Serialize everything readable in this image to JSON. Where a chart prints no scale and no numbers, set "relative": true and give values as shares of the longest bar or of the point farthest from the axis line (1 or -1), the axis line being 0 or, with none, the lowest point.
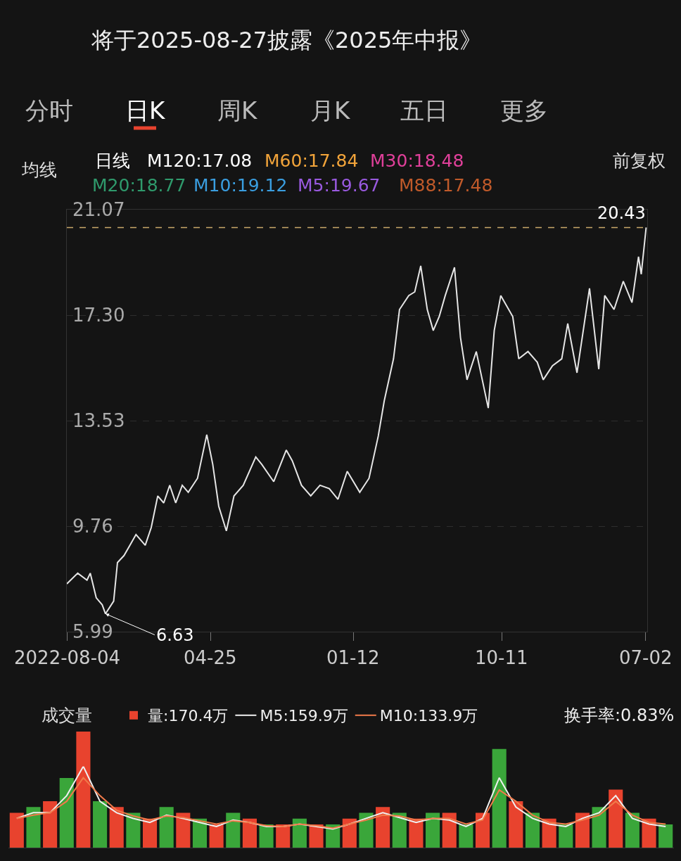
{
  "chart_data": [
    {
      "type": "line",
      "title": "将于2025-08-27披露《2025年中报》",
      "annotations": [
        "分时",
        "日K",
        "周K",
        "月K",
        "五日",
        "更多",
        "均线",
        "日线",
        "M120:17.08",
        "M60:17.84",
        "M30:18.48",
        "前复权",
        "M20:18.77",
        "M10:19.12",
        "M5:19.67",
        "M88:17.48",
        {
          "text": "6.63",
          "x": "2022-10-14",
          "y": 6.63
        }
      ],
      "x": [
        "2022-08-04",
        "2022-08-24",
        "2022-09-10",
        "2022-09-16",
        "2022-09-27",
        "2022-10-08",
        "2022-10-14",
        "2022-10-29",
        "2022-11-05",
        "2022-11-17",
        "2022-11-28",
        "2022-12-09",
        "2022-12-26",
        "2023-01-06",
        "2023-01-18",
        "2023-01-29",
        "2023-02-09",
        "2023-02-20",
        "2023-03-04",
        "2023-03-15",
        "2023-04-01",
        "2023-04-18",
        "2023-04-29",
        "2023-05-10",
        "2023-05-24",
        "2023-06-07",
        "2023-06-24",
        "2023-07-17",
        "2023-07-28",
        "2023-08-19",
        "2023-09-11",
        "2023-09-22",
        "2023-10-09",
        "2023-10-26",
        "2023-11-12",
        "2023-11-29",
        "2023-12-15",
        "2024-01-01",
        "2024-01-24",
        "2024-02-10",
        "2024-02-27",
        "2024-03-09",
        "2024-03-26",
        "2024-04-06",
        "2024-04-23",
        "2024-05-04",
        "2024-05-15",
        "2024-05-27",
        "2024-06-07",
        "2024-06-18",
        "2024-06-29",
        "2024-07-16",
        "2024-07-27",
        "2024-08-08",
        "2024-08-25",
        "2024-09-05",
        "2024-09-16",
        "2024-09-27",
        "2024-10-09",
        "2024-10-31",
        "2024-11-11",
        "2024-11-28",
        "2024-12-15",
        "2024-12-26",
        "2025-01-12",
        "2025-01-29",
        "2025-02-09",
        "2025-02-26",
        "2025-03-21",
        "2025-04-07",
        "2025-04-18",
        "2025-05-05",
        "2025-05-22",
        "2025-06-07",
        "2025-06-19",
        "2025-06-24",
        "2025-07-03"
      ],
      "values": [
        7.7,
        8.08,
        7.83,
        8.08,
        7.2,
        6.95,
        6.63,
        7.08,
        8.46,
        8.71,
        9.08,
        9.46,
        9.08,
        9.71,
        10.84,
        10.59,
        11.22,
        10.59,
        11.22,
        10.97,
        11.47,
        13.03,
        11.97,
        10.47,
        9.59,
        10.84,
        11.22,
        12.23,
        11.97,
        11.35,
        12.48,
        12.1,
        11.22,
        10.84,
        11.22,
        11.1,
        10.72,
        11.72,
        10.97,
        11.47,
        12.98,
        14.24,
        15.74,
        17.5,
        18.0,
        18.13,
        19.06,
        17.5,
        16.75,
        17.25,
        18.0,
        19.01,
        16.5,
        14.99,
        16.0,
        14.99,
        13.98,
        16.75,
        18.0,
        17.25,
        15.74,
        16.0,
        15.62,
        14.99,
        15.49,
        15.74,
        17.0,
        15.24,
        18.26,
        15.37,
        18.0,
        17.5,
        18.51,
        17.75,
        19.39,
        18.76,
        20.43
      ],
      "color": "#e6e6e6",
      "marker": "none",
      "line_style": "solid",
      "xlim": [
        "2022-08-04",
        "2025-07-05"
      ],
      "xticks": [
        {
          "value": "2022-08-04",
          "label": "2022-08-04"
        },
        {
          "value": "2023-04-25",
          "label": "04-25"
        },
        {
          "value": "2024-01-12",
          "label": "01-12"
        },
        {
          "value": "2024-10-11",
          "label": "10-11"
        },
        {
          "value": "2025-07-02",
          "label": "07-02"
        }
      ],
      "ylim": [
        5.99,
        21.07
      ],
      "yticks": [
        5.99,
        9.76,
        13.53,
        {
          "value": 17.3,
          "label": "17.30"
        },
        21.07
      ],
      "grid": "y",
      "ref_lines": [
        {
          "axis": "y",
          "value": 20.43,
          "label": "20.43",
          "color": "#c9a86a",
          "line_style": "dashed"
        }
      ]
    },
    {
      "type": "bar",
      "relative": true,
      "categories": [
        null,
        null,
        null,
        null,
        null,
        null,
        null,
        null,
        null,
        null,
        null,
        null,
        null,
        null,
        null,
        null,
        null,
        null,
        null,
        null,
        null,
        null,
        null,
        null,
        null,
        null,
        null,
        null,
        null,
        null,
        null,
        null,
        null,
        null,
        null,
        null,
        null,
        null,
        null,
        null
      ],
      "annotations": [
        "成交量",
        "换手率:0.83%"
      ],
      "legend": "top left",
      "series": [
        {
          "name": "量:170.4万",
          "type": "bar",
          "colors": [
            "#e8432e",
            "#3aa63a",
            "#e8432e",
            "#3aa63a",
            "#e8432e",
            "#3aa63a",
            "#e8432e",
            "#3aa63a",
            "#e8432e",
            "#3aa63a",
            "#e8432e",
            "#3aa63a",
            "#e8432e",
            "#3aa63a",
            "#e8432e",
            "#3aa63a",
            "#e8432e",
            "#3aa63a",
            "#e8432e",
            "#3aa63a",
            "#e8432e",
            "#3aa63a",
            "#e8432e",
            "#3aa63a",
            "#e8432e",
            "#3aa63a",
            "#e8432e",
            "#3aa63a",
            "#e8432e",
            "#3aa63a",
            "#e8432e",
            "#3aa63a",
            "#e8432e",
            "#3aa63a",
            "#e8432e",
            "#3aa63a",
            "#e8432e",
            "#3aa63a",
            "#e8432e",
            "#3aa63a"
          ],
          "values": [
            0.3,
            0.35,
            0.4,
            0.6,
            1.0,
            0.4,
            0.35,
            0.3,
            0.25,
            0.35,
            0.3,
            0.25,
            0.2,
            0.3,
            0.25,
            0.2,
            0.2,
            0.25,
            0.2,
            0.2,
            0.25,
            0.3,
            0.35,
            0.3,
            0.25,
            0.3,
            0.3,
            0.2,
            0.3,
            0.85,
            0.4,
            0.3,
            0.25,
            0.2,
            0.3,
            0.35,
            0.5,
            0.3,
            0.25,
            0.2
          ]
        }
      ]
    },
    {
      "type": "line",
      "relative": true,
      "categories": [
        null,
        null,
        null,
        null,
        null,
        null,
        null,
        null,
        null,
        null,
        null,
        null,
        null,
        null,
        null,
        null,
        null,
        null,
        null,
        null,
        null,
        null,
        null,
        null,
        null,
        null,
        null,
        null,
        null,
        null,
        null,
        null,
        null,
        null,
        null,
        null,
        null,
        null,
        null,
        null
      ],
      "legend": "top left",
      "series": [
        {
          "name": "M5:159.9万",
          "color": "#f0f0f0",
          "values": [
            0.36,
            0.43,
            0.43,
            0.64,
            1.0,
            0.57,
            0.43,
            0.36,
            0.31,
            0.4,
            0.36,
            0.31,
            0.26,
            0.34,
            0.31,
            0.26,
            0.26,
            0.29,
            0.26,
            0.23,
            0.29,
            0.36,
            0.43,
            0.37,
            0.31,
            0.36,
            0.34,
            0.26,
            0.36,
            0.86,
            0.5,
            0.36,
            0.29,
            0.26,
            0.36,
            0.43,
            0.64,
            0.36,
            0.29,
            0.26
          ]
        },
        {
          "name": "M10:133.9万",
          "color": "#f07a4a",
          "values": [
            0.36,
            0.4,
            0.43,
            0.57,
            0.86,
            0.64,
            0.46,
            0.39,
            0.34,
            0.39,
            0.37,
            0.33,
            0.29,
            0.33,
            0.31,
            0.27,
            0.26,
            0.29,
            0.27,
            0.24,
            0.29,
            0.34,
            0.4,
            0.39,
            0.34,
            0.36,
            0.36,
            0.29,
            0.34,
            0.71,
            0.57,
            0.4,
            0.31,
            0.29,
            0.34,
            0.4,
            0.57,
            0.4,
            0.31,
            0.29
          ]
        }
      ]
    }
  ]
}
